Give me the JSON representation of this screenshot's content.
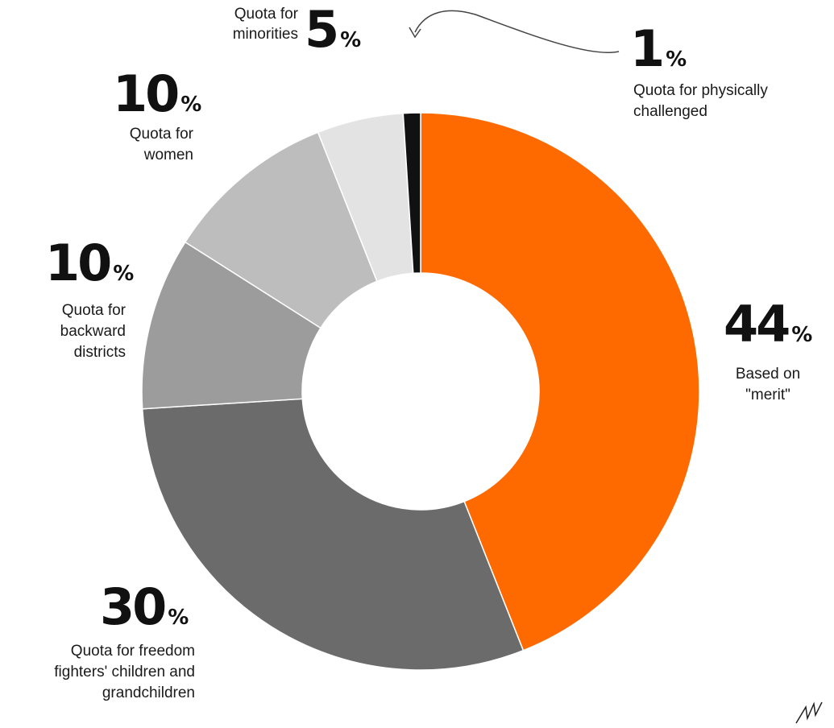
{
  "chart_data": {
    "type": "pie",
    "donut": true,
    "slices": [
      {
        "label": "Based on \"merit\"",
        "value": 44,
        "color": "#ff6a00",
        "pct_text": "44",
        "label_text": "Based on\n\"merit\""
      },
      {
        "label": "Quota for freedom fighters' children and grandchildren",
        "value": 30,
        "color": "#6b6b6b",
        "pct_text": "30",
        "label_text": "Quota for freedom\nfighters' children and\ngrandchildren"
      },
      {
        "label": "Quota for backward districts",
        "value": 10,
        "color": "#9c9c9c",
        "pct_text": "10",
        "label_text": "Quota for\nbackward\ndistricts"
      },
      {
        "label": "Quota for women",
        "value": 10,
        "color": "#bdbdbd",
        "pct_text": "10",
        "label_text": "Quota for\nwomen"
      },
      {
        "label": "Quota for minorities",
        "value": 5,
        "color": "#e3e3e3",
        "pct_text": "5",
        "label_text": "Quota for\nminorities"
      },
      {
        "label": "Quota for physically challenged",
        "value": 1,
        "color": "#111111",
        "pct_text": "1",
        "label_text": "Quota for physically\nchallenged"
      }
    ],
    "percent_sign": "%",
    "start_angle_deg": 0,
    "direction": "clockwise"
  }
}
